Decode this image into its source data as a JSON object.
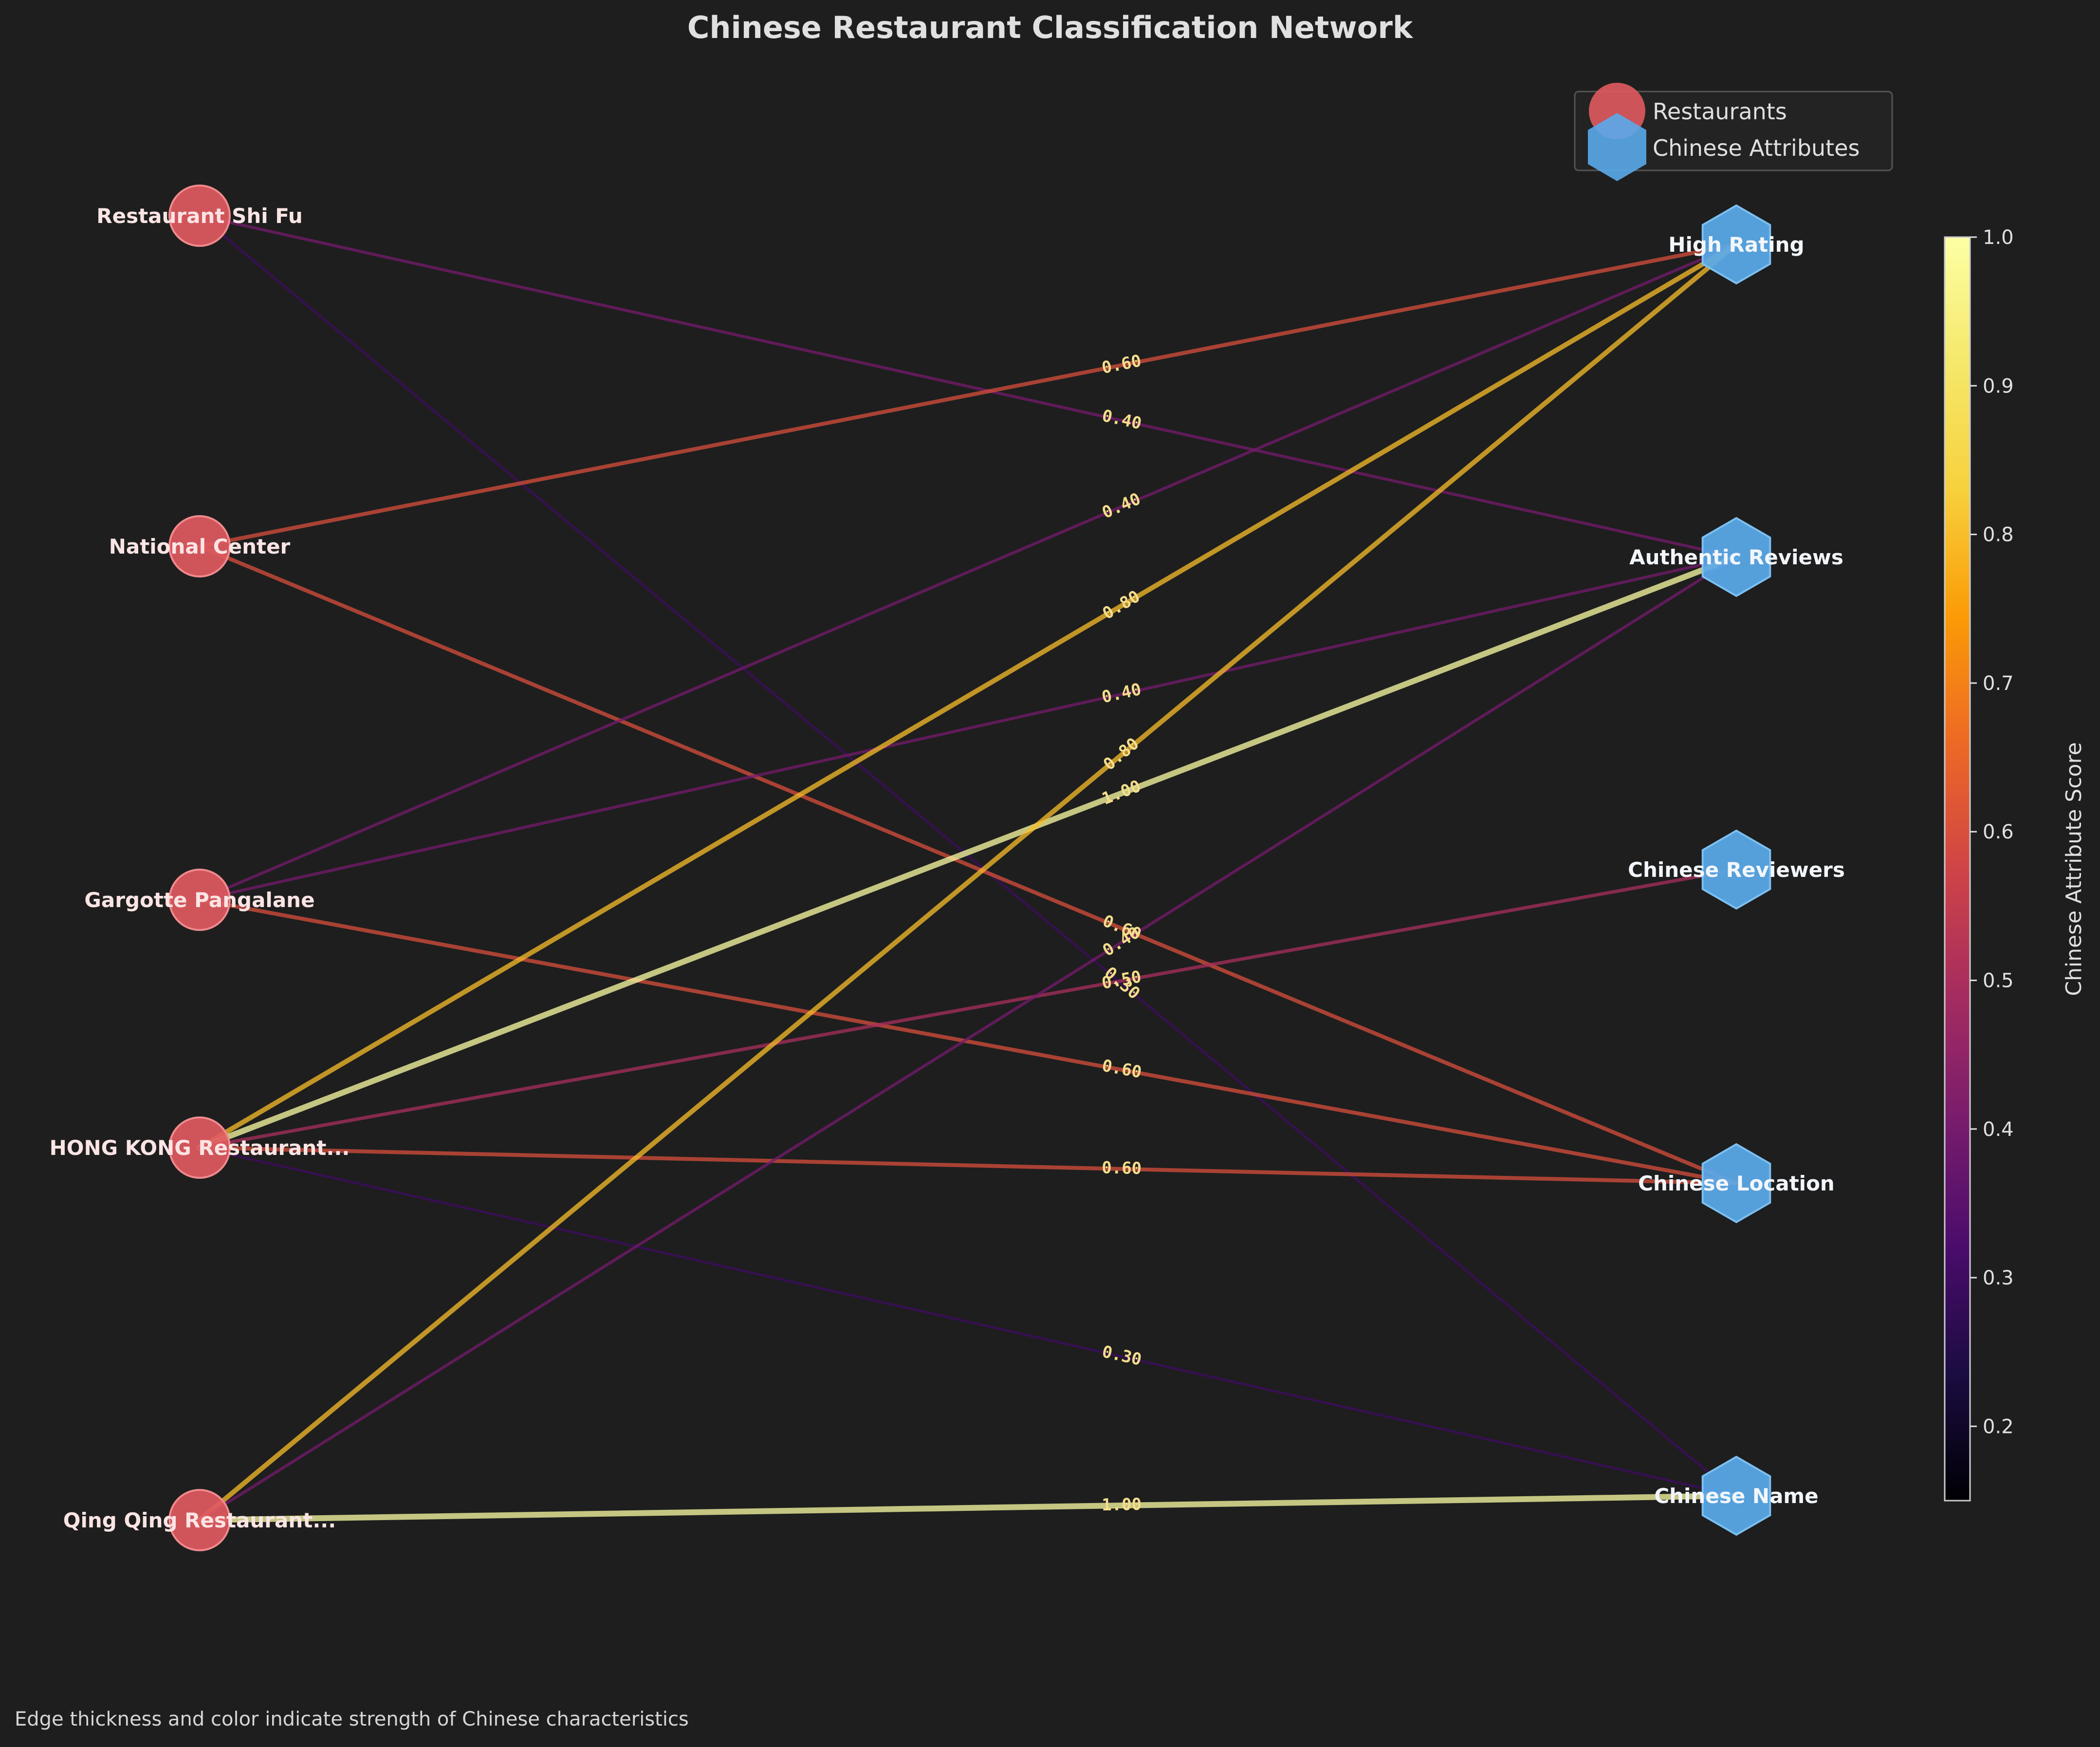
{
  "title": "Chinese Restaurant Classification Network",
  "footnote": "Edge thickness and color indicate strength of Chinese characteristics",
  "legend": {
    "restaurants": "Restaurants",
    "attributes": "Chinese Attributes"
  },
  "colors": {
    "background": "#1e1e1e",
    "restaurant_node": "#e05a5f",
    "attribute_node": "#5aaaea",
    "edge_label": "#f5dd8c"
  },
  "chart_data": {
    "type": "bipartite-network",
    "title": "Chinese Restaurant Classification Network",
    "restaurants": [
      "Restaurant Shi Fu",
      "National Center",
      "Gargotte Pangalane",
      "HONG KONG Restaurant...",
      "Qing Qing Restaurant..."
    ],
    "attributes": [
      "High Rating",
      "Authentic Reviews",
      "Chinese Reviewers",
      "Chinese Location",
      "Chinese Name"
    ],
    "edges": [
      {
        "source": "Restaurant Shi Fu",
        "target": "Authentic Reviews",
        "score": 0.4,
        "label": "0.40"
      },
      {
        "source": "Restaurant Shi Fu",
        "target": "Chinese Name",
        "score": 0.3,
        "label": "0.30"
      },
      {
        "source": "National Center",
        "target": "High Rating",
        "score": 0.6,
        "label": "0.60"
      },
      {
        "source": "National Center",
        "target": "Chinese Location",
        "score": 0.6,
        "label": "0.60"
      },
      {
        "source": "Gargotte Pangalane",
        "target": "High Rating",
        "score": 0.4,
        "label": "0.40"
      },
      {
        "source": "Gargotte Pangalane",
        "target": "Authentic Reviews",
        "score": 0.4,
        "label": "0.40"
      },
      {
        "source": "Gargotte Pangalane",
        "target": "Chinese Location",
        "score": 0.6,
        "label": "0.60"
      },
      {
        "source": "HONG KONG Restaurant...",
        "target": "High Rating",
        "score": 0.8,
        "label": "0.80"
      },
      {
        "source": "HONG KONG Restaurant...",
        "target": "Authentic Reviews",
        "score": 1.0,
        "label": "1.00"
      },
      {
        "source": "HONG KONG Restaurant...",
        "target": "Chinese Reviewers",
        "score": 0.5,
        "label": "0.50"
      },
      {
        "source": "HONG KONG Restaurant...",
        "target": "Chinese Location",
        "score": 0.6,
        "label": "0.60"
      },
      {
        "source": "HONG KONG Restaurant...",
        "target": "Chinese Name",
        "score": 0.3,
        "label": "0.30"
      },
      {
        "source": "Qing Qing Restaurant...",
        "target": "High Rating",
        "score": 0.8,
        "label": "0.80"
      },
      {
        "source": "Qing Qing Restaurant...",
        "target": "Authentic Reviews",
        "score": 0.4,
        "label": "0.40"
      },
      {
        "source": "Qing Qing Restaurant...",
        "target": "Chinese Name",
        "score": 1.0,
        "label": "1.00"
      }
    ],
    "colorbar": {
      "label": "Chinese Attribute Score",
      "colormap": "inferno",
      "range": [
        0.15,
        1.0
      ],
      "ticks": [
        "0.2",
        "0.3",
        "0.4",
        "0.5",
        "0.6",
        "0.7",
        "0.8",
        "0.9",
        "1.0"
      ]
    }
  }
}
